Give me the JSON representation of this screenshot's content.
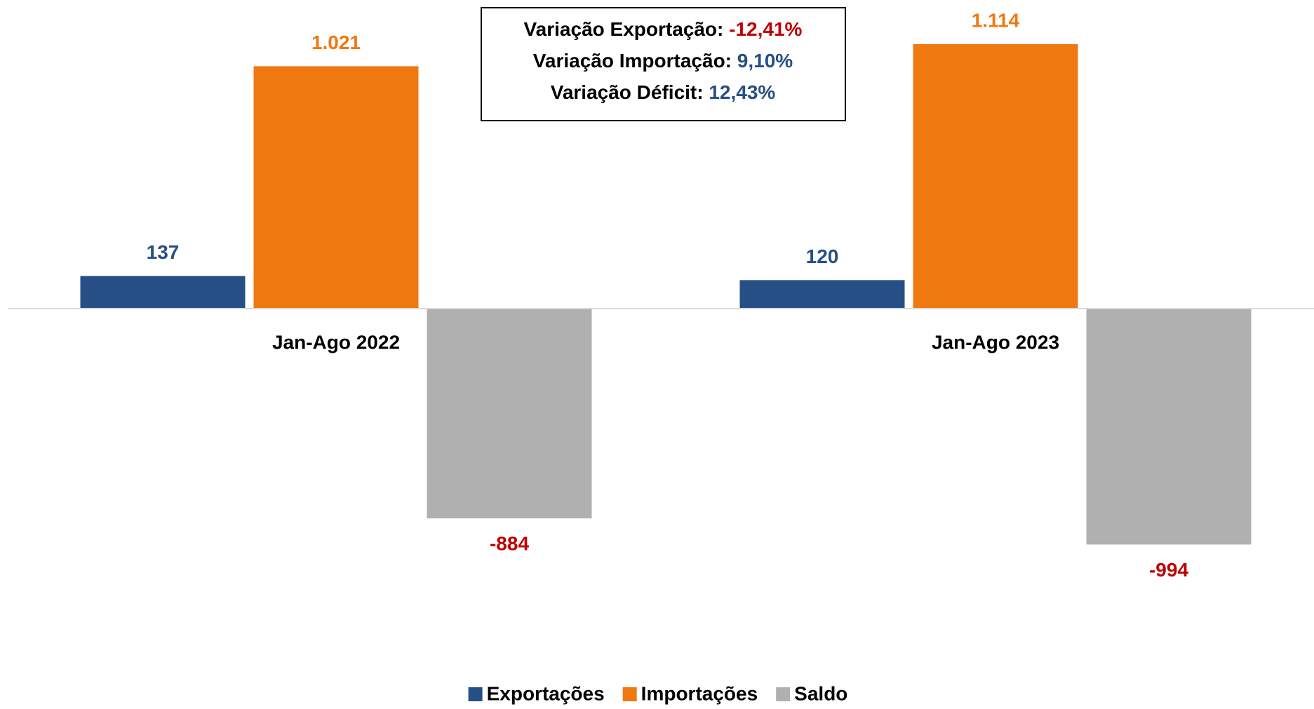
{
  "chart_data": {
    "type": "bar",
    "categories": [
      "Jan-Ago 2022",
      "Jan-Ago 2023"
    ],
    "series": [
      {
        "name": "Exportações",
        "color": "#264F86",
        "label_color": "#264F86",
        "values": [
          137,
          120
        ]
      },
      {
        "name": "Importações",
        "color": "#F07810",
        "label_color": "#F07810",
        "values": [
          1021,
          1114
        ],
        "value_labels": [
          "1.021",
          "1.114"
        ]
      },
      {
        "name": "Saldo",
        "color": "#B0B0B0",
        "label_color": "#C00000",
        "values": [
          -884,
          -994
        ]
      }
    ],
    "ylim": [
      -1300,
      1300
    ],
    "legend": "bottom",
    "annotation": [
      {
        "label": "Variação Exportação:",
        "value": "-12,41%",
        "color": "#C00000"
      },
      {
        "label": "Variação Importação:",
        "value": "9,10%",
        "color": "#264F86"
      },
      {
        "label": "Variação Déficit:",
        "value": "12,43%",
        "color": "#264F86"
      }
    ]
  }
}
